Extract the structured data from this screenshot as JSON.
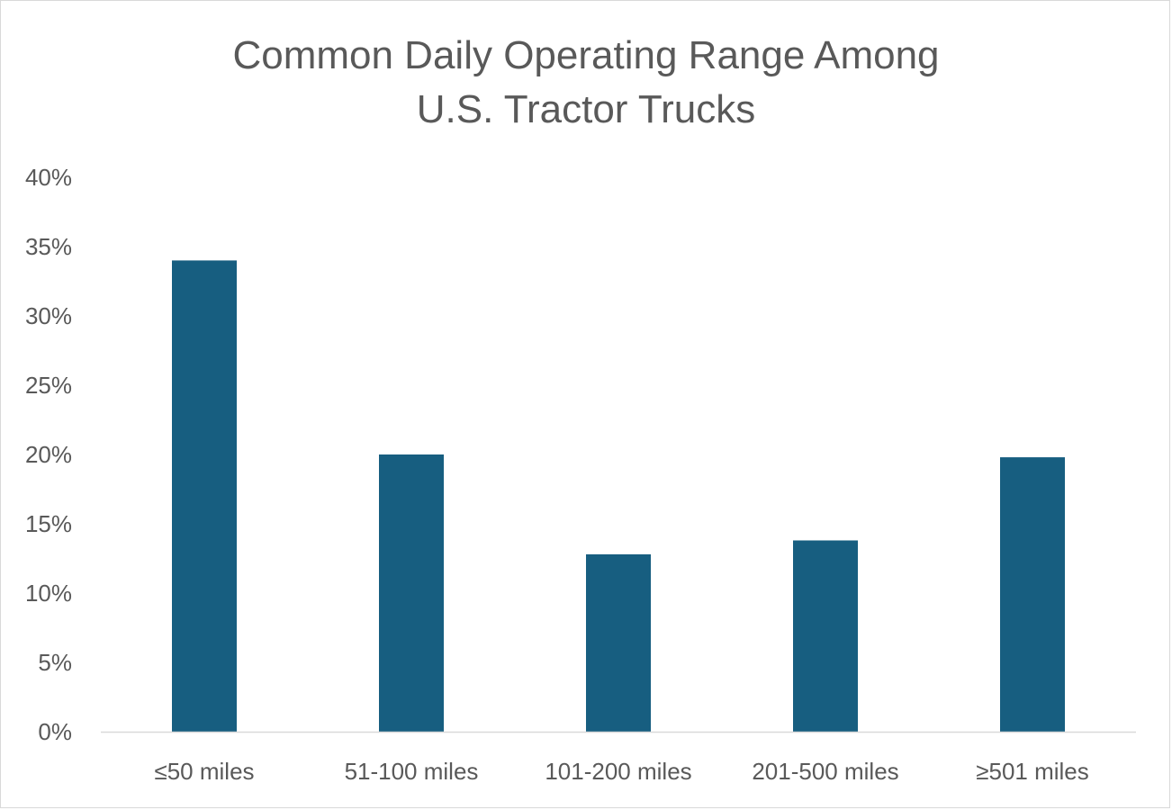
{
  "chart_data": {
    "type": "bar",
    "title_lines": [
      "Common Daily Operating Range Among",
      "U.S. Tractor Trucks"
    ],
    "categories": [
      "≤50 miles",
      "51-100 miles",
      "101-200 miles",
      "201-500 miles",
      "≥501 miles"
    ],
    "values": [
      34,
      20,
      12.8,
      13.8,
      19.8
    ],
    "ylim": [
      0,
      40
    ],
    "yticks": [
      0,
      5,
      10,
      15,
      20,
      25,
      30,
      35,
      40
    ],
    "ytick_labels": [
      "0%",
      "5%",
      "10%",
      "15%",
      "20%",
      "25%",
      "30%",
      "35%",
      "40%"
    ],
    "xlabel": "",
    "ylabel": "",
    "grid": false,
    "legend": "none",
    "bar_color": "#175e80",
    "axis_color": "#d9d9d9",
    "text_color": "#595959"
  }
}
